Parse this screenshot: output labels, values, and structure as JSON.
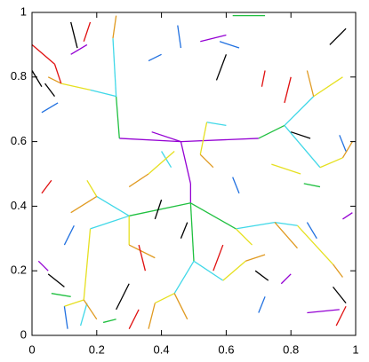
{
  "chart_data": {
    "type": "segments",
    "xlim": [
      0,
      1
    ],
    "ylim": [
      0,
      1
    ],
    "xticks": [
      0,
      0.2,
      0.4,
      0.6,
      0.8,
      1
    ],
    "yticks": [
      0,
      0.2,
      0.4,
      0.6,
      0.8,
      1
    ],
    "series": [
      {
        "color": "#9400d3",
        "segments": [
          [
            0.46,
            0.6,
            0.27,
            0.61
          ],
          [
            0.46,
            0.6,
            0.7,
            0.61
          ],
          [
            0.46,
            0.6,
            0.49,
            0.47
          ],
          [
            0.49,
            0.47,
            0.49,
            0.41
          ],
          [
            0.46,
            0.6,
            0.37,
            0.63
          ],
          [
            0.02,
            0.23,
            0.05,
            0.2
          ],
          [
            0.85,
            0.07,
            0.95,
            0.08
          ],
          [
            0.12,
            0.87,
            0.17,
            0.9
          ],
          [
            0.52,
            0.91,
            0.6,
            0.93
          ],
          [
            0.96,
            0.36,
            0.99,
            0.38
          ],
          [
            0.77,
            0.16,
            0.8,
            0.19
          ]
        ]
      },
      {
        "color": "#20c040",
        "segments": [
          [
            0.7,
            0.61,
            0.78,
            0.65
          ],
          [
            0.27,
            0.61,
            0.26,
            0.74
          ],
          [
            0.49,
            0.41,
            0.3,
            0.37
          ],
          [
            0.49,
            0.41,
            0.5,
            0.23
          ],
          [
            0.49,
            0.41,
            0.63,
            0.33
          ],
          [
            0.22,
            0.04,
            0.26,
            0.05
          ],
          [
            0.62,
            0.99,
            0.72,
            0.99
          ],
          [
            0.06,
            0.13,
            0.12,
            0.12
          ],
          [
            0.84,
            0.47,
            0.89,
            0.46
          ]
        ]
      },
      {
        "color": "#40d8e8",
        "segments": [
          [
            0.78,
            0.65,
            0.87,
            0.74
          ],
          [
            0.78,
            0.65,
            0.89,
            0.52
          ],
          [
            0.3,
            0.37,
            0.18,
            0.33
          ],
          [
            0.3,
            0.37,
            0.2,
            0.43
          ],
          [
            0.5,
            0.23,
            0.59,
            0.17
          ],
          [
            0.5,
            0.23,
            0.44,
            0.13
          ],
          [
            0.63,
            0.33,
            0.75,
            0.35
          ],
          [
            0.26,
            0.74,
            0.25,
            0.92
          ],
          [
            0.26,
            0.74,
            0.18,
            0.76
          ],
          [
            0.54,
            0.66,
            0.6,
            0.65
          ],
          [
            0.17,
            0.1,
            0.15,
            0.03
          ],
          [
            0.4,
            0.57,
            0.43,
            0.52
          ],
          [
            0.75,
            0.35,
            0.82,
            0.34
          ]
        ]
      },
      {
        "color": "#e6e020",
        "segments": [
          [
            0.18,
            0.33,
            0.16,
            0.11
          ],
          [
            0.16,
            0.11,
            0.1,
            0.09
          ],
          [
            0.87,
            0.74,
            0.96,
            0.8
          ],
          [
            0.89,
            0.52,
            0.96,
            0.55
          ],
          [
            0.18,
            0.76,
            0.09,
            0.78
          ],
          [
            0.59,
            0.17,
            0.66,
            0.23
          ],
          [
            0.44,
            0.13,
            0.38,
            0.1
          ],
          [
            0.63,
            0.33,
            0.68,
            0.28
          ],
          [
            0.3,
            0.37,
            0.3,
            0.28
          ],
          [
            0.54,
            0.66,
            0.52,
            0.56
          ],
          [
            0.44,
            0.57,
            0.36,
            0.5
          ],
          [
            0.2,
            0.43,
            0.17,
            0.48
          ],
          [
            0.82,
            0.34,
            0.93,
            0.22
          ],
          [
            0.74,
            0.53,
            0.83,
            0.5
          ]
        ]
      },
      {
        "color": "#e09a20",
        "segments": [
          [
            0.75,
            0.35,
            0.82,
            0.27
          ],
          [
            0.3,
            0.28,
            0.38,
            0.24
          ],
          [
            0.2,
            0.43,
            0.12,
            0.38
          ],
          [
            0.16,
            0.11,
            0.2,
            0.05
          ],
          [
            0.09,
            0.78,
            0.05,
            0.8
          ],
          [
            0.66,
            0.23,
            0.72,
            0.25
          ],
          [
            0.38,
            0.1,
            0.36,
            0.02
          ],
          [
            0.52,
            0.56,
            0.56,
            0.52
          ],
          [
            0.87,
            0.74,
            0.85,
            0.82
          ],
          [
            0.96,
            0.55,
            0.99,
            0.6
          ],
          [
            0.25,
            0.92,
            0.26,
            0.99
          ],
          [
            0.93,
            0.22,
            0.96,
            0.18
          ],
          [
            0.36,
            0.5,
            0.3,
            0.46
          ],
          [
            0.44,
            0.13,
            0.48,
            0.05
          ]
        ]
      },
      {
        "color": "#e01010",
        "segments": [
          [
            0.0,
            0.9,
            0.07,
            0.84
          ],
          [
            0.07,
            0.84,
            0.09,
            0.78
          ],
          [
            0.71,
            0.77,
            0.72,
            0.82
          ],
          [
            0.3,
            0.02,
            0.33,
            0.08
          ],
          [
            0.94,
            0.03,
            0.97,
            0.09
          ],
          [
            0.03,
            0.44,
            0.06,
            0.48
          ],
          [
            0.78,
            0.72,
            0.8,
            0.8
          ],
          [
            0.56,
            0.2,
            0.59,
            0.28
          ],
          [
            0.33,
            0.28,
            0.35,
            0.2
          ],
          [
            0.16,
            0.91,
            0.18,
            0.97
          ]
        ]
      },
      {
        "color": "#2070e0",
        "segments": [
          [
            0.03,
            0.69,
            0.08,
            0.72
          ],
          [
            0.13,
            0.34,
            0.1,
            0.28
          ],
          [
            0.58,
            0.91,
            0.64,
            0.89
          ],
          [
            0.85,
            0.35,
            0.88,
            0.3
          ],
          [
            0.45,
            0.96,
            0.46,
            0.89
          ],
          [
            0.11,
            0.02,
            0.1,
            0.09
          ],
          [
            0.7,
            0.07,
            0.72,
            0.12
          ],
          [
            0.95,
            0.62,
            0.97,
            0.57
          ],
          [
            0.36,
            0.85,
            0.4,
            0.87
          ],
          [
            0.62,
            0.49,
            0.64,
            0.44
          ]
        ]
      },
      {
        "color": "#000000",
        "segments": [
          [
            0.57,
            0.79,
            0.6,
            0.87
          ],
          [
            0.3,
            0.16,
            0.26,
            0.08
          ],
          [
            0.46,
            0.3,
            0.48,
            0.35
          ],
          [
            0.04,
            0.78,
            0.07,
            0.74
          ],
          [
            0.92,
            0.9,
            0.97,
            0.95
          ],
          [
            0.14,
            0.89,
            0.12,
            0.97
          ],
          [
            0.8,
            0.63,
            0.86,
            0.61
          ],
          [
            0.93,
            0.15,
            0.97,
            0.1
          ],
          [
            0.0,
            0.82,
            0.03,
            0.77
          ],
          [
            0.05,
            0.19,
            0.1,
            0.15
          ],
          [
            0.69,
            0.2,
            0.73,
            0.17
          ],
          [
            0.38,
            0.36,
            0.4,
            0.42
          ]
        ]
      }
    ]
  }
}
